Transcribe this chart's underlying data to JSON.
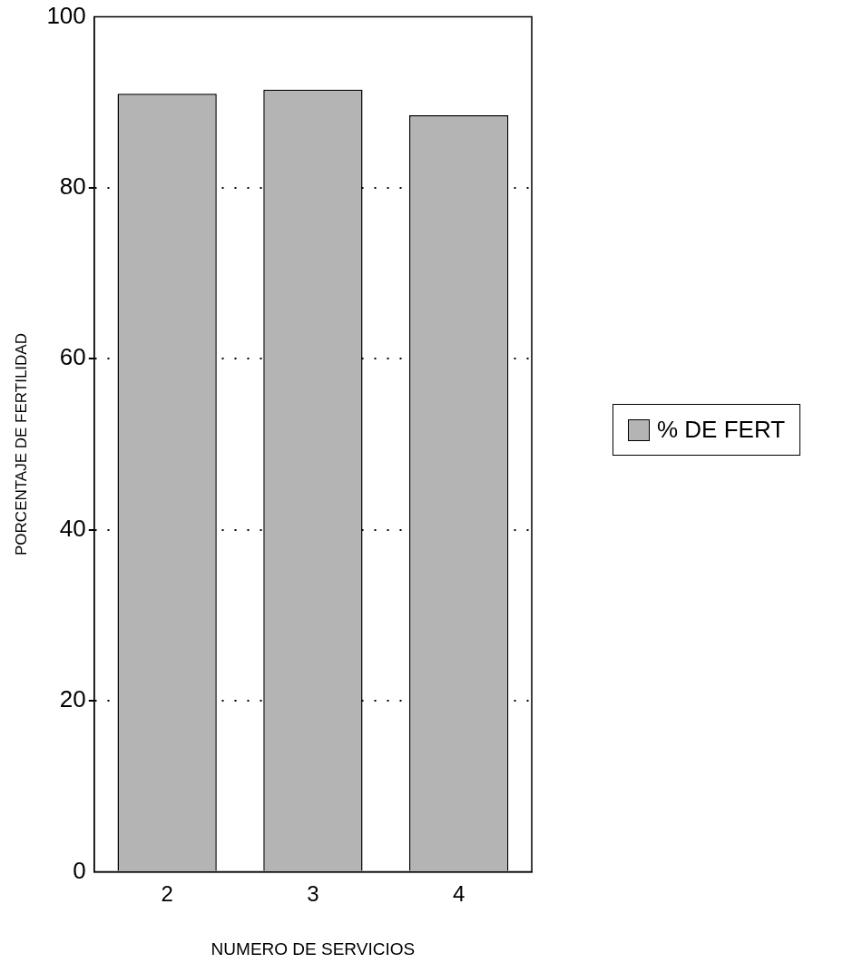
{
  "chart_data": {
    "type": "bar",
    "xlabel": "NUMERO DE SERVICIOS",
    "ylabel": "PORCENTAJE DE FERTILIDAD",
    "categories": [
      "2",
      "3",
      "4"
    ],
    "series": [
      {
        "name": "% DE FERT",
        "color": "#b4b4b4",
        "values": [
          91,
          91.5,
          88.5
        ]
      }
    ],
    "ylim": [
      0,
      100
    ],
    "yticks": [
      0,
      20,
      40,
      60,
      80,
      100
    ],
    "grid": "y",
    "legend": "right"
  }
}
